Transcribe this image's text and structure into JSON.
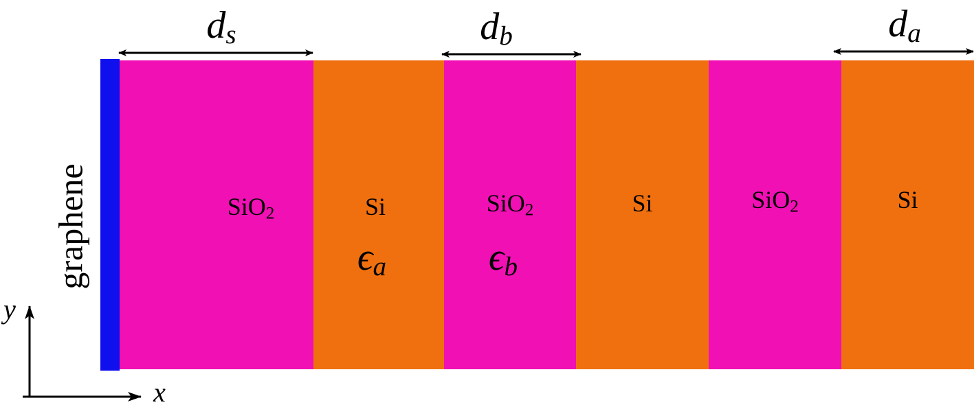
{
  "graphene_label": "graphene",
  "axes": {
    "x": "x",
    "y": "y"
  },
  "layers": [
    {
      "material": {
        "base": "SiO",
        "sub": "2"
      }
    },
    {
      "material": {
        "base": "Si"
      },
      "permittivity": {
        "base": "ϵ",
        "sub": "a"
      }
    },
    {
      "material": {
        "base": "SiO",
        "sub": "2"
      },
      "permittivity": {
        "base": "ϵ",
        "sub": "b"
      }
    },
    {
      "material": {
        "base": "Si"
      }
    },
    {
      "material": {
        "base": "SiO",
        "sub": "2"
      }
    },
    {
      "material": {
        "base": "Si"
      }
    }
  ],
  "dimensions": [
    {
      "base": "d",
      "sub": "s"
    },
    {
      "base": "d",
      "sub": "b"
    },
    {
      "base": "d",
      "sub": "a"
    }
  ]
}
